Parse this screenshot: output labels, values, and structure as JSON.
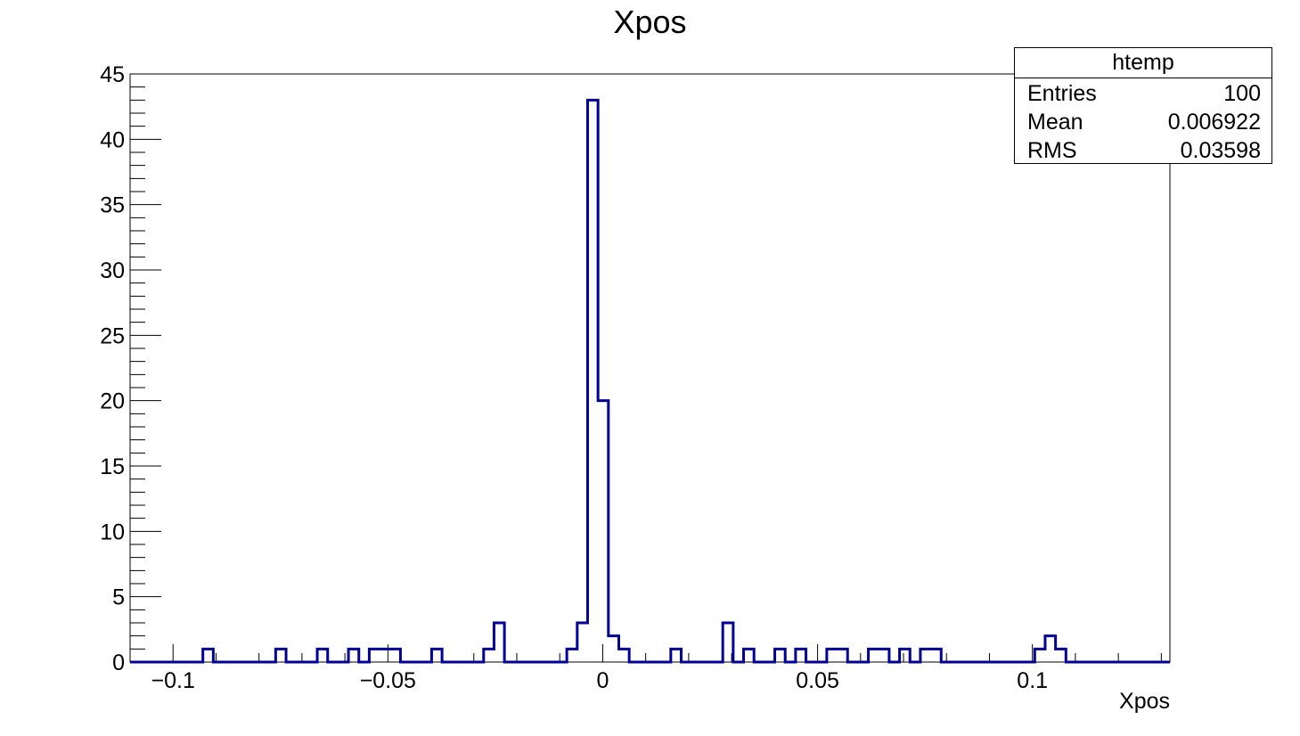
{
  "chart_data": {
    "type": "bar",
    "title": "Xpos",
    "xlabel": "Xpos",
    "ylabel": "",
    "xlim": [
      -0.11,
      0.132
    ],
    "ylim": [
      0,
      45
    ],
    "bin_width": 0.00242,
    "x_ticks": [
      {
        "value": -0.1,
        "label": "−0.1"
      },
      {
        "value": -0.05,
        "label": "−0.05"
      },
      {
        "value": 0,
        "label": "0"
      },
      {
        "value": 0.05,
        "label": "0.05"
      },
      {
        "value": 0.1,
        "label": "0.1"
      }
    ],
    "y_ticks": [
      0,
      5,
      10,
      15,
      20,
      25,
      30,
      35,
      40,
      45
    ],
    "series": [
      {
        "values": [
          0,
          0,
          0,
          0,
          0,
          0,
          0,
          1,
          0,
          0,
          0,
          0,
          0,
          0,
          1,
          0,
          0,
          0,
          1,
          0,
          0,
          1,
          0,
          1,
          1,
          1,
          0,
          0,
          0,
          1,
          0,
          0,
          0,
          0,
          1,
          3,
          0,
          0,
          0,
          0,
          0,
          0,
          1,
          3,
          43,
          20,
          2,
          1,
          0,
          0,
          0,
          0,
          1,
          0,
          0,
          0,
          0,
          3,
          0,
          1,
          0,
          0,
          1,
          0,
          1,
          0,
          0,
          1,
          1,
          0,
          0,
          1,
          1,
          0,
          1,
          0,
          1,
          1,
          0,
          0,
          0,
          0,
          0,
          0,
          0,
          0,
          0,
          1,
          2,
          1,
          0,
          0,
          0,
          0,
          0,
          0,
          0,
          0,
          0,
          0
        ],
        "color": "#000099"
      }
    ],
    "legend": "top-right",
    "grid": false
  },
  "stats_box": {
    "title": "htemp",
    "rows": [
      {
        "label": "Entries",
        "value": "100"
      },
      {
        "label": "Mean",
        "value": "0.006922"
      },
      {
        "label": "RMS",
        "value": "0.03598"
      }
    ]
  }
}
